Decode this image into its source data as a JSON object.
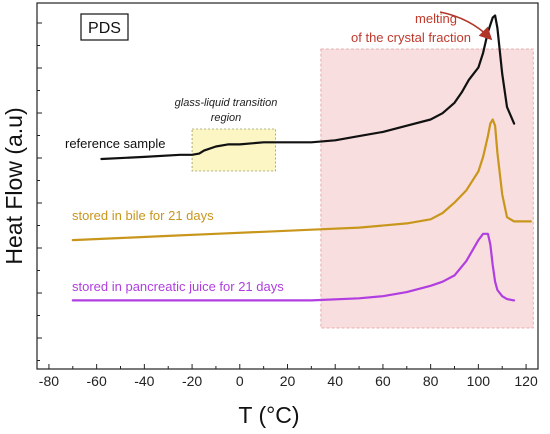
{
  "chart_data": {
    "type": "line",
    "panel_label": "PDS",
    "xlabel": "T (°C)",
    "ylabel": "Heat Flow (a.u)",
    "xlim": [
      -85,
      125
    ],
    "x_ticks": [
      "-80",
      "-60",
      "-40",
      "-20",
      "0",
      "20",
      "40",
      "60",
      "80",
      "100",
      "120"
    ],
    "y_ticks_labeled": false,
    "ylim": [
      -6.6,
      2.2
    ],
    "grid": false,
    "series": [
      {
        "name": "reference sample",
        "color": "#111111",
        "x": [
          -58,
          -40,
          -25,
          -20,
          -17,
          -15,
          -10,
          -5,
          0,
          10,
          20,
          30,
          40,
          50,
          60,
          70,
          80,
          85,
          90,
          93,
          96,
          98,
          100,
          102,
          104,
          106,
          107,
          108,
          110,
          112,
          115
        ],
        "y": [
          -1.55,
          -1.5,
          -1.45,
          -1.45,
          -1.42,
          -1.35,
          -1.25,
          -1.2,
          -1.2,
          -1.15,
          -1.15,
          -1.15,
          -1.1,
          -1.0,
          -0.9,
          -0.75,
          -0.6,
          -0.45,
          -0.2,
          0.05,
          0.35,
          0.5,
          0.65,
          1.0,
          1.5,
          1.85,
          1.9,
          1.6,
          0.5,
          -0.3,
          -0.7
        ]
      },
      {
        "name": "stored in bile for 21 days",
        "color": "#c9961c",
        "x": [
          -70,
          -50,
          -30,
          -10,
          10,
          30,
          50,
          70,
          80,
          85,
          90,
          95,
          100,
          102,
          104,
          105,
          106,
          107,
          108,
          110,
          112,
          115,
          122
        ],
        "y": [
          -3.5,
          -3.45,
          -3.4,
          -3.35,
          -3.3,
          -3.25,
          -3.2,
          -3.1,
          -3.0,
          -2.85,
          -2.6,
          -2.3,
          -1.85,
          -1.5,
          -1.0,
          -0.7,
          -0.6,
          -0.75,
          -1.4,
          -2.4,
          -2.95,
          -3.05,
          -3.05
        ]
      },
      {
        "name": "stored in pancreatic juice for 21 days",
        "color": "#b03ee0",
        "x": [
          -70,
          -50,
          -30,
          -10,
          10,
          30,
          50,
          60,
          70,
          80,
          85,
          90,
          95,
          98,
          100,
          102,
          104,
          105,
          106,
          107,
          108,
          110,
          112,
          115
        ],
        "y": [
          -4.95,
          -4.95,
          -4.95,
          -4.95,
          -4.95,
          -4.95,
          -4.9,
          -4.85,
          -4.75,
          -4.6,
          -4.5,
          -4.35,
          -4.0,
          -3.7,
          -3.5,
          -3.35,
          -3.35,
          -3.6,
          -4.1,
          -4.5,
          -4.7,
          -4.85,
          -4.92,
          -4.95
        ]
      }
    ],
    "annotations": {
      "glass_region_label": [
        "glass-liquid transition",
        "region"
      ],
      "melting_label": [
        "melting",
        "of the crystal fraction"
      ],
      "glass_region_x": [
        -20,
        15
      ],
      "melting_region_x": [
        34,
        123
      ]
    },
    "colors": {
      "melting_region_fill": "#f8dede",
      "glass_region_fill": "#fbf6c4",
      "melting_text": "#c0392b",
      "arrow": "#b1362a"
    }
  }
}
